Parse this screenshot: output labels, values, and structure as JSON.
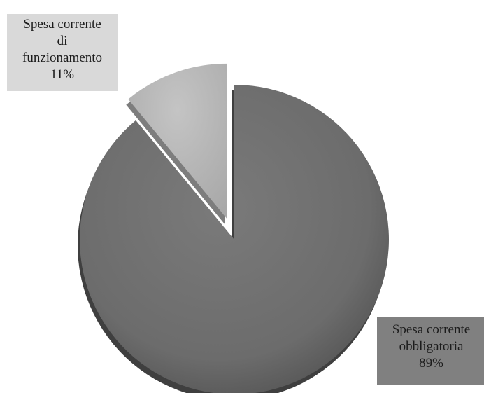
{
  "chart_data": {
    "type": "pie",
    "slices": [
      {
        "name": "Spesa corrente obbligatoria",
        "label_lines": [
          "Spesa corrente",
          "obbligatoria"
        ],
        "value": 89,
        "value_label": "89%",
        "color": "#6e6e6e",
        "exploded": false
      },
      {
        "name": "Spesa corrente di funzionamento",
        "label_lines": [
          "Spesa corrente",
          "di",
          "funzionamento"
        ],
        "value": 11,
        "value_label": "11%",
        "color": "#bdbdbd",
        "exploded": true
      }
    ],
    "style": "3d-shaded"
  }
}
